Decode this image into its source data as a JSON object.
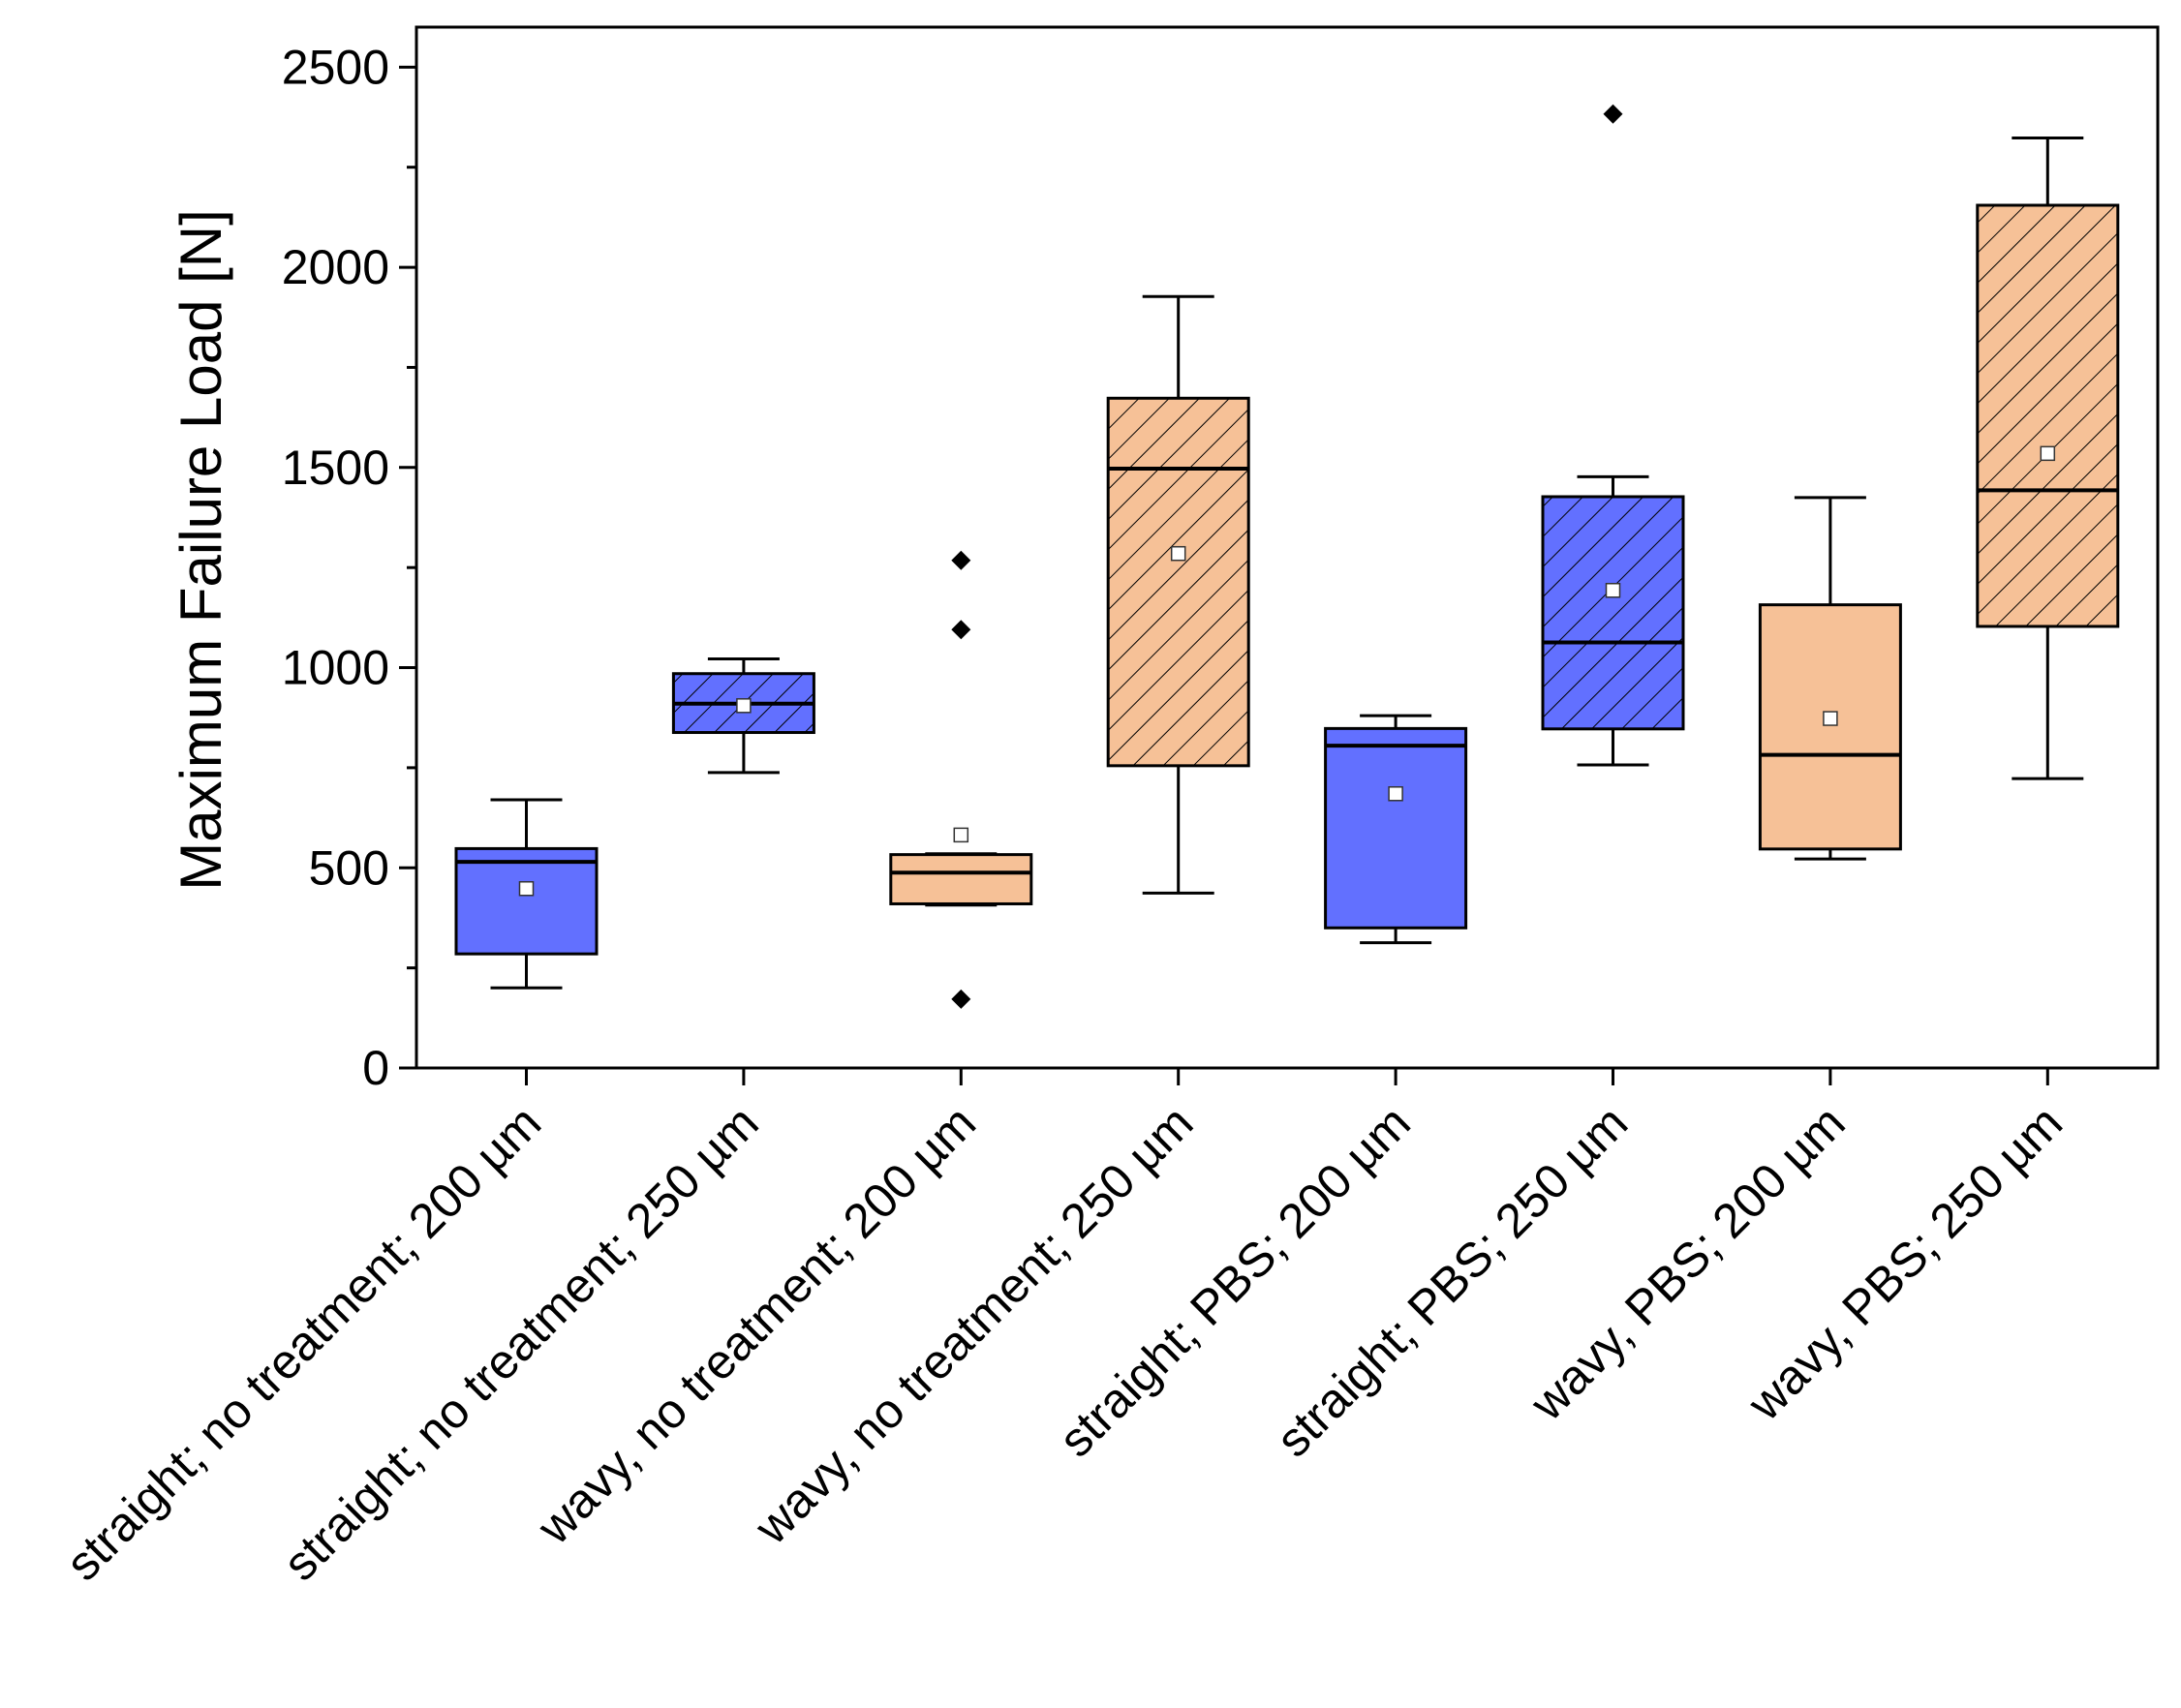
{
  "chart_data": {
    "type": "box",
    "title": "",
    "xlabel": "",
    "ylabel": "Maximum Failure Load [N]",
    "ylim": [
      0,
      2600
    ],
    "yticks": [
      0,
      500,
      1000,
      1500,
      2000,
      2500
    ],
    "ytick_labels": [
      "0",
      "500",
      "1000",
      "1500",
      "2000",
      "2500"
    ],
    "grid": false,
    "colors": {
      "blue": "#6270ff",
      "orange": "#f6c197",
      "line": "#000000"
    },
    "boxes": [
      {
        "label": "straight; no treatment; 200 µm",
        "color": "blue",
        "hatched": false,
        "whisker_low": 200,
        "q1": 285,
        "median": 515,
        "q3": 548,
        "whisker_high": 670,
        "mean": 448,
        "outliers": []
      },
      {
        "label": "straight; no treatment; 250 µm",
        "color": "blue",
        "hatched": true,
        "whisker_low": 738,
        "q1": 838,
        "median": 910,
        "q3": 985,
        "whisker_high": 1022,
        "mean": 905,
        "outliers": []
      },
      {
        "label": "wavy, no treatment; 200 µm",
        "color": "orange",
        "hatched": false,
        "whisker_low": 407,
        "q1": 410,
        "median": 488,
        "q3": 533,
        "whisker_high": 535,
        "mean": 582,
        "outliers": [
          1268,
          1095,
          172
        ]
      },
      {
        "label": "wavy, no treatment; 250 µm",
        "color": "orange",
        "hatched": true,
        "whisker_low": 437,
        "q1": 755,
        "median": 1497,
        "q3": 1673,
        "whisker_high": 1927,
        "mean": 1285,
        "outliers": []
      },
      {
        "label": "straight; PBS; 200 µm",
        "color": "blue",
        "hatched": false,
        "whisker_low": 313,
        "q1": 350,
        "median": 805,
        "q3": 848,
        "whisker_high": 880,
        "mean": 685,
        "outliers": []
      },
      {
        "label": "straight; PBS; 250 µm",
        "color": "blue",
        "hatched": true,
        "whisker_low": 757,
        "q1": 847,
        "median": 1063,
        "q3": 1427,
        "whisker_high": 1477,
        "mean": 1193,
        "outliers": [
          2383
        ]
      },
      {
        "label": "wavy, PBS; 200 µm",
        "color": "orange",
        "hatched": false,
        "whisker_low": 522,
        "q1": 547,
        "median": 782,
        "q3": 1157,
        "whisker_high": 1425,
        "mean": 873,
        "outliers": []
      },
      {
        "label": "wavy, PBS; 250 µm",
        "color": "orange",
        "hatched": true,
        "whisker_low": 723,
        "q1": 1103,
        "median": 1443,
        "q3": 2155,
        "whisker_high": 2323,
        "mean": 1535,
        "outliers": []
      }
    ]
  }
}
